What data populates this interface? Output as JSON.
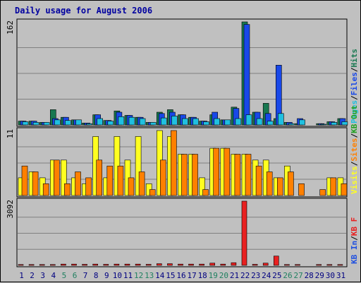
{
  "title": "Daily usage for August 2006",
  "colors": {
    "background": "#c0c0c0",
    "panel": "#c0c0c0",
    "grid": "#808080",
    "title": "#0000a0",
    "pages": "#20c0e0",
    "files": "#1848e8",
    "hits": "#187850",
    "visits": "#ffff20",
    "sites": "#ff8000",
    "kb_f": "#e82020",
    "kb_in": "#2050e0",
    "kb_out": "#20a020",
    "weekend_tick": "#208060",
    "weekday_tick": "#000080"
  },
  "chart_data": {
    "type": "bar",
    "title": "Daily usage for August 2006",
    "days": [
      "1",
      "2",
      "3",
      "4",
      "5",
      "6",
      "7",
      "8",
      "9",
      "10",
      "11",
      "12",
      "13",
      "14",
      "15",
      "16",
      "17",
      "18",
      "19",
      "20",
      "21",
      "22",
      "23",
      "24",
      "25",
      "26",
      "27",
      "28",
      "29",
      "30",
      "31"
    ],
    "weekend_days": [
      "5",
      "6",
      "12",
      "13",
      "19",
      "20",
      "26",
      "27"
    ],
    "panels": [
      {
        "id": "hits",
        "ymax_label": "162",
        "ymax": 162,
        "legend": [
          {
            "text": "Pages",
            "color": "pages"
          },
          {
            "text": "/",
            "color": "sep"
          },
          {
            "text": "Files",
            "color": "files"
          },
          {
            "text": "/",
            "color": "sep"
          },
          {
            "text": "Hits",
            "color": "hits"
          }
        ],
        "series": [
          {
            "key": "hits",
            "values": [
              6,
              6,
              4,
              24,
              12,
              8,
              3,
              16,
              7,
              22,
              15,
              12,
              4,
              20,
              24,
              16,
              12,
              6,
              16,
              8,
              28,
              162,
              20,
              34,
              10,
              4,
              2,
              0,
              2,
              5,
              10
            ]
          },
          {
            "key": "files",
            "values": [
              6,
              6,
              4,
              10,
              12,
              8,
              3,
              16,
              7,
              20,
              15,
              12,
              4,
              18,
              20,
              16,
              12,
              6,
              20,
              8,
              26,
              158,
              20,
              18,
              94,
              4,
              10,
              0,
              2,
              5,
              10
            ]
          },
          {
            "key": "pages",
            "values": [
              5,
              4,
              4,
              8,
              7,
              8,
              2,
              10,
              6,
              13,
              12,
              10,
              4,
              11,
              14,
              10,
              10,
              5,
              10,
              8,
              10,
              16,
              10,
              6,
              18,
              2,
              8,
              0,
              1,
              4,
              5
            ]
          }
        ]
      },
      {
        "id": "visits",
        "ymax_label": "11",
        "ymax": 11,
        "legend": [
          {
            "text": "Visits",
            "color": "visits"
          },
          {
            "text": "/",
            "color": "sep"
          },
          {
            "text": "Sites",
            "color": "sites"
          },
          {
            "text": "/",
            "color": "sep"
          },
          {
            "text": "KB Out",
            "color": "kb_out"
          }
        ],
        "series": [
          {
            "key": "visits",
            "values": [
              3,
              4,
              3,
              6,
              6,
              3,
              2,
              10,
              3,
              10,
              6,
              10,
              2,
              11,
              10,
              7,
              7,
              3,
              8,
              8,
              7,
              7,
              6,
              6,
              3,
              5,
              0,
              0,
              0,
              3,
              3
            ]
          },
          {
            "key": "sites",
            "values": [
              5,
              4,
              2,
              6,
              2,
              4,
              3,
              6,
              5,
              5,
              3,
              4,
              1,
              6,
              11,
              7,
              7,
              1,
              8,
              8,
              7,
              7,
              5,
              4,
              3,
              4,
              2,
              0,
              1,
              3,
              2
            ]
          }
        ]
      },
      {
        "id": "kbytes",
        "ymax_label": "3092",
        "ymax": 3092,
        "legend": [
          {
            "text": "KB In",
            "color": "kb_in"
          },
          {
            "text": "/",
            "color": "sep"
          },
          {
            "text": "KB F",
            "color": "kb_f"
          }
        ],
        "series": [
          {
            "key": "kb_f",
            "values": [
              40,
              40,
              40,
              40,
              60,
              60,
              50,
              60,
              50,
              60,
              60,
              60,
              50,
              80,
              80,
              60,
              60,
              60,
              110,
              60,
              130,
              3092,
              50,
              110,
              450,
              40,
              40,
              0,
              40,
              40,
              40
            ]
          }
        ]
      }
    ]
  }
}
